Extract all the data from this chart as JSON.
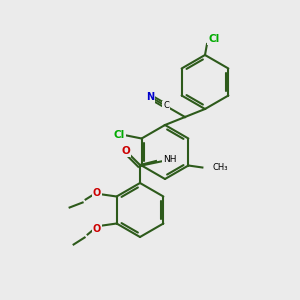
{
  "bg_color": "#ebebeb",
  "bond_color": "#2d5a1b",
  "bond_width": 1.5,
  "atom_colors": {
    "N": "#0000cc",
    "O": "#cc0000",
    "Cl": "#00aa00",
    "C": "#000000"
  },
  "figsize": [
    3.0,
    3.0
  ],
  "dpi": 100,
  "ring_r": 27
}
